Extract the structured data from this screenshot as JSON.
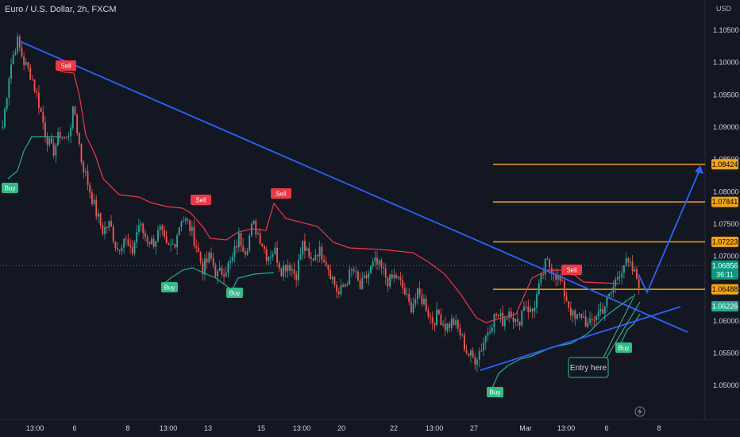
{
  "title": "Euro / U.S. Dollar, 2h, FXCM",
  "currency": "USD",
  "colors": {
    "background": "#131722",
    "up": "#26a69a",
    "down": "#ef5350",
    "trend_red": "#f23645",
    "trend_green": "#22ab94",
    "trendline": "#2962ff",
    "level": "#f7a600",
    "buy": "#2ebd85",
    "sell": "#f23645",
    "current": "#089981"
  },
  "chart_data": {
    "type": "candlestick",
    "y_ticks": [
      1.105,
      1.1,
      1.095,
      1.09,
      1.085,
      1.08,
      1.075,
      1.07,
      1.065,
      1.06,
      1.055,
      1.05
    ],
    "y_tick_labels": [
      "1.10500",
      "1.10000",
      "1.09500",
      "1.09000",
      "1.08500",
      "1.08000",
      "1.07500",
      "1.07000",
      "1.06500",
      "1.06000",
      "1.05500",
      "1.05000"
    ],
    "x_labels": [
      "13:00",
      "6",
      "8",
      "13:00",
      "13",
      "15",
      "13:00",
      "20",
      "22",
      "13:00",
      "27",
      "Mar",
      "13:00",
      "6",
      "8"
    ],
    "price_labels": [
      {
        "value": 1.08424,
        "label": "1.08424",
        "kind": "level"
      },
      {
        "value": 1.07841,
        "label": "1.07841",
        "kind": "level"
      },
      {
        "value": 1.07223,
        "label": "1.07223",
        "kind": "level"
      },
      {
        "value": 1.06856,
        "label": "1.06856",
        "kind": "current",
        "timer": "36:11"
      },
      {
        "value": 1.06488,
        "label": "1.06488",
        "kind": "level"
      },
      {
        "value": 1.06226,
        "label": "1.06226",
        "kind": "support"
      }
    ],
    "horizontal_levels": [
      1.08424,
      1.07841,
      1.07223,
      1.06488
    ],
    "close_path": [
      1.09,
      1.099,
      1.1035,
      1.1,
      1.098,
      1.094,
      1.089,
      1.086,
      1.089,
      1.088,
      1.093,
      1.085,
      1.081,
      1.077,
      1.074,
      1.075,
      1.071,
      1.073,
      1.07,
      1.075,
      1.073,
      1.072,
      1.074,
      1.071,
      1.072,
      1.076,
      1.075,
      1.072,
      1.068,
      1.07,
      1.067,
      1.068,
      1.069,
      1.073,
      1.071,
      1.075,
      1.073,
      1.07,
      1.071,
      1.068,
      1.069,
      1.067,
      1.072,
      1.069,
      1.071,
      1.07,
      1.067,
      1.064,
      1.066,
      1.068,
      1.065,
      1.067,
      1.069,
      1.068,
      1.066,
      1.067,
      1.065,
      1.062,
      1.064,
      1.063,
      1.06,
      1.061,
      1.059,
      1.06,
      1.058,
      1.055,
      1.054,
      1.056,
      1.059,
      1.061,
      1.06,
      1.062,
      1.059,
      1.063,
      1.061,
      1.065,
      1.069,
      1.068,
      1.066,
      1.063,
      1.06,
      1.061,
      1.059,
      1.061,
      1.062,
      1.064,
      1.067,
      1.069,
      1.068,
      1.066
    ],
    "signals": [
      {
        "text": "Buy",
        "type": "buy"
      },
      {
        "text": "Sell",
        "type": "sell"
      },
      {
        "text": "Buy",
        "type": "buy"
      },
      {
        "text": "Sell",
        "type": "sell"
      },
      {
        "text": "Buy",
        "type": "buy"
      },
      {
        "text": "Sell",
        "type": "sell"
      },
      {
        "text": "Buy",
        "type": "buy"
      },
      {
        "text": "Sell",
        "type": "sell"
      },
      {
        "text": "Buy",
        "type": "buy"
      }
    ],
    "annotation": "Entry here"
  }
}
